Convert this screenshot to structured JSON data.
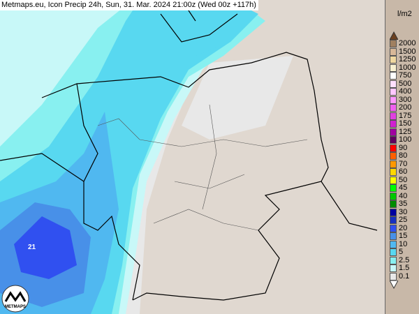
{
  "title": "Metmaps.eu, Icon Precip 24h, Sun, 31. Mar. 2024 21:00z (Wed 00z +117h)",
  "legend": {
    "unit": "l/m2",
    "levels": [
      {
        "v": "2000",
        "c": "#a08060"
      },
      {
        "v": "1500",
        "c": "#d8b898"
      },
      {
        "v": "1250",
        "c": "#f0d8a0"
      },
      {
        "v": "1000",
        "c": "#f8f0d0"
      },
      {
        "v": "750",
        "c": "#ffffff"
      },
      {
        "v": "500",
        "c": "#ffe0ff"
      },
      {
        "v": "400",
        "c": "#ffc8ff"
      },
      {
        "v": "300",
        "c": "#ff98ff"
      },
      {
        "v": "200",
        "c": "#f060f0"
      },
      {
        "v": "175",
        "c": "#e040e0"
      },
      {
        "v": "150",
        "c": "#d020d0"
      },
      {
        "v": "125",
        "c": "#a000a0"
      },
      {
        "v": "100",
        "c": "#600060"
      },
      {
        "v": "90",
        "c": "#ff0000"
      },
      {
        "v": "80",
        "c": "#ff6000"
      },
      {
        "v": "70",
        "c": "#ff9800"
      },
      {
        "v": "60",
        "c": "#ffd800"
      },
      {
        "v": "50",
        "c": "#ffff00"
      },
      {
        "v": "45",
        "c": "#00ff00"
      },
      {
        "v": "40",
        "c": "#00c800"
      },
      {
        "v": "35",
        "c": "#008c00"
      },
      {
        "v": "30",
        "c": "#0000a0"
      },
      {
        "v": "25",
        "c": "#1830c0"
      },
      {
        "v": "20",
        "c": "#3050f0"
      },
      {
        "v": "15",
        "c": "#4890e8"
      },
      {
        "v": "10",
        "c": "#50b8f0"
      },
      {
        "v": "5",
        "c": "#58d8f0"
      },
      {
        "v": "2.5",
        "c": "#88f0f0"
      },
      {
        "v": "1.5",
        "c": "#c8f8f8"
      },
      {
        "v": "0.1",
        "c": "#e8e8e8"
      }
    ],
    "max_arrow_color": "#6b4020"
  },
  "map": {
    "cell_label": "21",
    "logo_text": "METMAPS"
  }
}
